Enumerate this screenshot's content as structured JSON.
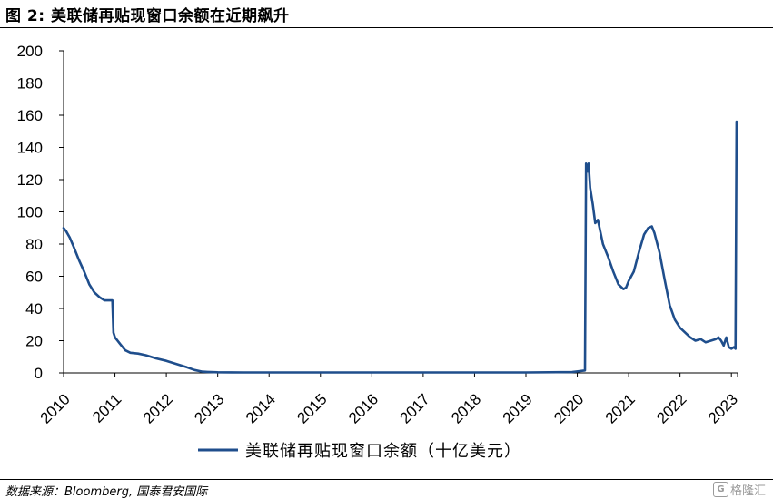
{
  "figure": {
    "title": "图 2:  美联储再贴现窗口余额在近期飙升",
    "source": "数据来源：Bloomberg, 国泰君安国际",
    "watermark": "格隆汇"
  },
  "chart_data": {
    "type": "line",
    "title": "图 2:  美联储再贴现窗口余额在近期飙升",
    "xlabel": "",
    "ylabel": "",
    "ylim": [
      0,
      200
    ],
    "yticks": [
      0,
      20,
      40,
      60,
      80,
      100,
      120,
      140,
      160,
      180,
      200
    ],
    "xlim": [
      2010,
      2023.12
    ],
    "xticks": [
      "2010",
      "2011",
      "2012",
      "2013",
      "2014",
      "2015",
      "2016",
      "2017",
      "2018",
      "2019",
      "2020",
      "2021",
      "2022",
      "2023"
    ],
    "grid": false,
    "legend_position": "bottom",
    "series": [
      {
        "name": "美联储再贴现窗口余额（十亿美元）",
        "color": "#1f4e8c",
        "x": [
          2010.0,
          2010.05,
          2010.12,
          2010.2,
          2010.3,
          2010.4,
          2010.5,
          2010.6,
          2010.7,
          2010.8,
          2010.9,
          2010.95,
          2010.97,
          2011.0,
          2011.1,
          2011.2,
          2011.3,
          2011.45,
          2011.6,
          2011.8,
          2012.0,
          2012.2,
          2012.4,
          2012.55,
          2012.7,
          2012.8,
          2013.0,
          2013.5,
          2014.0,
          2015.0,
          2016.0,
          2017.0,
          2018.0,
          2019.0,
          2019.9,
          2020.15,
          2020.17,
          2020.2,
          2020.22,
          2020.25,
          2020.3,
          2020.35,
          2020.4,
          2020.5,
          2020.6,
          2020.7,
          2020.8,
          2020.9,
          2020.95,
          2021.0,
          2021.1,
          2021.2,
          2021.3,
          2021.38,
          2021.45,
          2021.5,
          2021.6,
          2021.7,
          2021.8,
          2021.9,
          2022.0,
          2022.1,
          2022.2,
          2022.3,
          2022.4,
          2022.5,
          2022.6,
          2022.7,
          2022.75,
          2022.8,
          2022.85,
          2022.9,
          2022.95,
          2023.0,
          2023.05,
          2023.08,
          2023.1
        ],
        "values": [
          90,
          88,
          84,
          78,
          70,
          63,
          55,
          50,
          47,
          45,
          45,
          45,
          25,
          22,
          18,
          14,
          12.5,
          12,
          11,
          9,
          7.5,
          5.5,
          3.5,
          1.8,
          0.8,
          0.6,
          0.4,
          0.3,
          0.3,
          0.3,
          0.3,
          0.3,
          0.3,
          0.3,
          0.5,
          1.5,
          130,
          125,
          130,
          115,
          105,
          93,
          95,
          80,
          72,
          63,
          55,
          52,
          53,
          57,
          63,
          75,
          86,
          90,
          91,
          87,
          75,
          58,
          42,
          33,
          28,
          25,
          22,
          20,
          21,
          19,
          20,
          21,
          22,
          20,
          17,
          22,
          16,
          15,
          16,
          15,
          156
        ]
      }
    ]
  }
}
